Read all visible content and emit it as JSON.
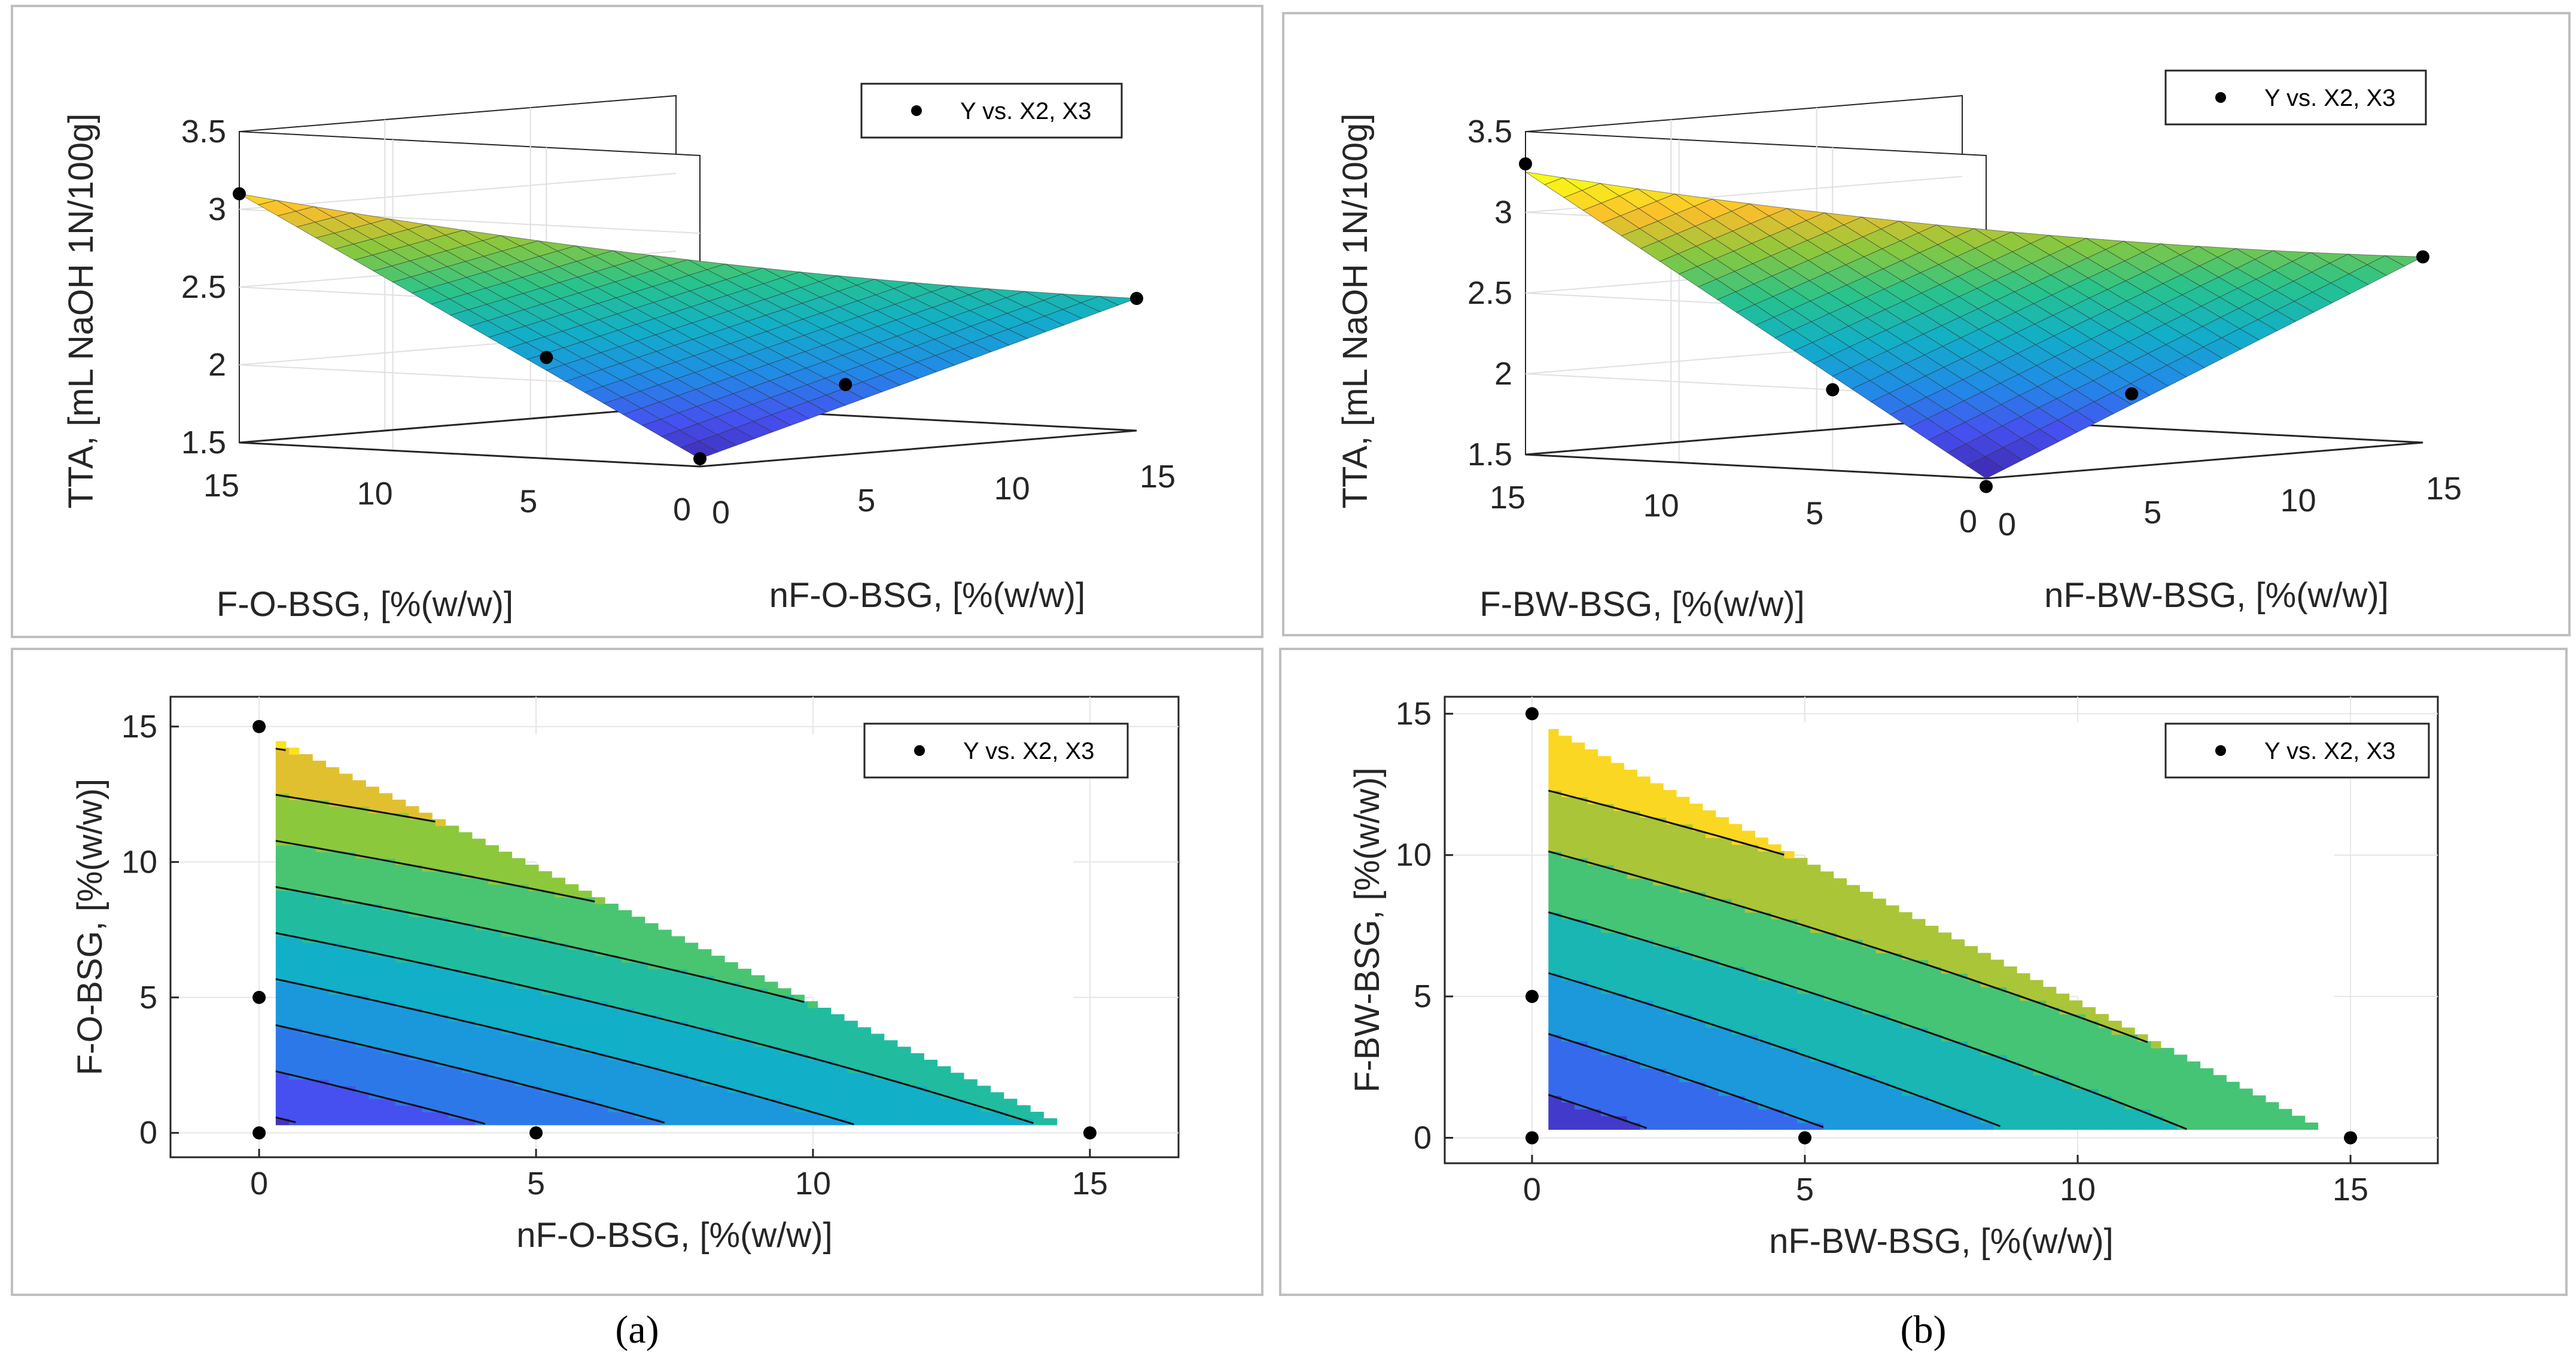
{
  "figure": {
    "colors": {
      "viridis_low": "#3e26a8",
      "viridis_mid": "#1aa8d0",
      "viridis_high": "#f9fb15",
      "frame": "#bfbfbf",
      "grid": "#e6e6e6"
    },
    "captions": {
      "a": "(a)",
      "b": "(b)"
    }
  },
  "chart_data": [
    {
      "id": "a-surface",
      "type": "surface3d",
      "title": "",
      "xlabel": "nF-O-BSG, [%(w/w)]",
      "ylabel": "F-O-BSG, [%(w/w)]",
      "zlabel": "TTA, [mL NaOH 1N/100g]",
      "xlim": [
        0,
        15
      ],
      "ylim": [
        0,
        15
      ],
      "zlim": [
        1.5,
        3.5
      ],
      "xticks": [
        "0",
        "5",
        "10",
        "15"
      ],
      "yticks": [
        "0",
        "5",
        "10",
        "15"
      ],
      "zticks": [
        "1.5",
        "2",
        "2.5",
        "3",
        "3.5"
      ],
      "legend": "Y vs. X2, X3",
      "points": [
        {
          "x": 0,
          "y": 15,
          "z": 3.1
        },
        {
          "x": 0,
          "y": 5,
          "z": 2.15
        },
        {
          "x": 0,
          "y": 0,
          "z": 1.55
        },
        {
          "x": 5,
          "y": 0,
          "z": 1.95
        },
        {
          "x": 15,
          "y": 0,
          "z": 2.35
        }
      ],
      "surface": {
        "corner_x0_y15": 3.1,
        "corner_x0_y0": 1.55,
        "corner_x15_y0": 2.35
      }
    },
    {
      "id": "b-surface",
      "type": "surface3d",
      "title": "",
      "xlabel": "nF-BW-BSG, [%(w/w)]",
      "ylabel": "F-BW-BSG, [%(w/w)]",
      "zlabel": "TTA, [mL NaOH 1N/100g]",
      "xlim": [
        0,
        15
      ],
      "ylim": [
        0,
        15
      ],
      "zlim": [
        1.5,
        3.5
      ],
      "xticks": [
        "0",
        "5",
        "10",
        "15"
      ],
      "yticks": [
        "0",
        "5",
        "10",
        "15"
      ],
      "zticks": [
        "1.5",
        "2",
        "2.5",
        "3",
        "3.5"
      ],
      "legend": "Y vs. X2, X3",
      "points": [
        {
          "x": 0,
          "y": 15,
          "z": 3.3
        },
        {
          "x": 0,
          "y": 5,
          "z": 2.0
        },
        {
          "x": 0,
          "y": 0,
          "z": 1.45
        },
        {
          "x": 5,
          "y": 0,
          "z": 1.95
        },
        {
          "x": 15,
          "y": 0,
          "z": 2.65
        }
      ],
      "surface": {
        "corner_x0_y15": 3.25,
        "corner_x0_y0": 1.5,
        "corner_x15_y0": 2.65
      }
    },
    {
      "id": "a-contour",
      "type": "contour",
      "title": "",
      "xlabel": "nF-O-BSG, [%(w/w)]",
      "ylabel": "F-O-BSG, [%(w/w)]",
      "xlim": [
        -1.6,
        16.6
      ],
      "ylim": [
        -0.9,
        16.1
      ],
      "xticks": [
        0,
        5,
        10,
        15
      ],
      "yticks": [
        0,
        5,
        10,
        15
      ],
      "legend": "Y vs. X2, X3",
      "levels": 10,
      "points": [
        {
          "x": 0,
          "y": 15
        },
        {
          "x": 0,
          "y": 5
        },
        {
          "x": 0,
          "y": 0
        },
        {
          "x": 5,
          "y": 0
        },
        {
          "x": 15,
          "y": 0
        }
      ],
      "corner_values": {
        "x0_y15": 3.1,
        "x0_y0": 1.55,
        "x15_y0": 2.35
      }
    },
    {
      "id": "b-contour",
      "type": "contour",
      "title": "",
      "xlabel": "nF-BW-BSG, [%(w/w)]",
      "ylabel": "F-BW-BSG, [%(w/w)]",
      "xlim": [
        -1.6,
        16.6
      ],
      "ylim": [
        -0.9,
        15.6
      ],
      "xticks": [
        0,
        5,
        10,
        15
      ],
      "yticks": [
        0,
        5,
        10,
        15
      ],
      "legend": "Y vs. X2, X3",
      "levels": 7,
      "points": [
        {
          "x": 0,
          "y": 15
        },
        {
          "x": 0,
          "y": 5
        },
        {
          "x": 0,
          "y": 0
        },
        {
          "x": 5,
          "y": 0
        },
        {
          "x": 15,
          "y": 0
        }
      ],
      "corner_values": {
        "x0_y15": 3.25,
        "x0_y0": 1.5,
        "x15_y0": 2.65
      }
    }
  ]
}
